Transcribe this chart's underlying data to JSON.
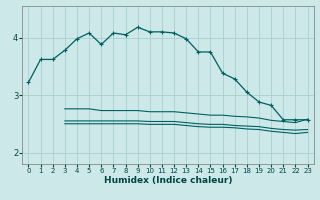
{
  "xlabel": "Humidex (Indice chaleur)",
  "bg_color": "#cce8e8",
  "grid_color": "#aacece",
  "line_color": "#006060",
  "xlim": [
    -0.5,
    23.5
  ],
  "ylim": [
    1.8,
    4.55
  ],
  "yticks": [
    2,
    3,
    4
  ],
  "xticks": [
    0,
    1,
    2,
    3,
    4,
    5,
    6,
    7,
    8,
    9,
    10,
    11,
    12,
    13,
    14,
    15,
    16,
    17,
    18,
    19,
    20,
    21,
    22,
    23
  ],
  "main_x": [
    0,
    1,
    2,
    3,
    4,
    5,
    6,
    7,
    8,
    9,
    10,
    11,
    12,
    13,
    14,
    15,
    16,
    17,
    18,
    19,
    20,
    21,
    22,
    23
  ],
  "main_y": [
    3.22,
    3.62,
    3.62,
    3.78,
    3.98,
    4.08,
    3.88,
    4.08,
    4.05,
    4.18,
    4.1,
    4.1,
    4.08,
    3.98,
    3.75,
    3.75,
    3.38,
    3.28,
    3.05,
    2.88,
    2.82,
    2.57,
    2.57,
    2.57
  ],
  "lower1_x": [
    3,
    4,
    5,
    6,
    7,
    8,
    9,
    10,
    11,
    12,
    13,
    14,
    15,
    16,
    17,
    18,
    19,
    20,
    21,
    22,
    23
  ],
  "lower1_y": [
    2.76,
    2.76,
    2.76,
    2.73,
    2.73,
    2.73,
    2.73,
    2.71,
    2.71,
    2.71,
    2.69,
    2.67,
    2.65,
    2.65,
    2.63,
    2.62,
    2.6,
    2.56,
    2.54,
    2.52,
    2.58
  ],
  "lower2_x": [
    3,
    4,
    5,
    6,
    7,
    8,
    9,
    10,
    11,
    12,
    13,
    14,
    15,
    16,
    17,
    18,
    19,
    20,
    21,
    22,
    23
  ],
  "lower2_y": [
    2.55,
    2.55,
    2.55,
    2.55,
    2.55,
    2.55,
    2.55,
    2.54,
    2.54,
    2.54,
    2.52,
    2.5,
    2.49,
    2.49,
    2.47,
    2.46,
    2.45,
    2.42,
    2.4,
    2.39,
    2.4
  ],
  "lower3_x": [
    3,
    4,
    5,
    6,
    7,
    8,
    9,
    10,
    11,
    12,
    13,
    14,
    15,
    16,
    17,
    18,
    19,
    20,
    21,
    22,
    23
  ],
  "lower3_y": [
    2.5,
    2.5,
    2.5,
    2.5,
    2.5,
    2.5,
    2.5,
    2.49,
    2.49,
    2.49,
    2.47,
    2.45,
    2.44,
    2.44,
    2.43,
    2.41,
    2.4,
    2.37,
    2.35,
    2.33,
    2.35
  ]
}
